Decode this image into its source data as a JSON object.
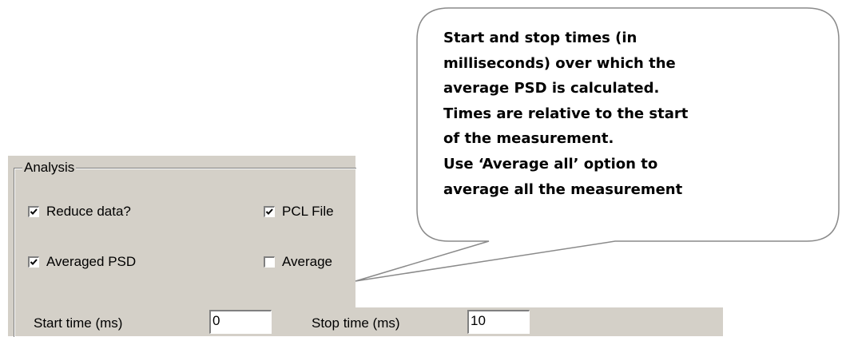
{
  "group": {
    "title": "Analysis",
    "checkboxes": [
      {
        "label": "Reduce data?",
        "checked": true
      },
      {
        "label": "PCL File",
        "checked": true
      },
      {
        "label": "Averaged PSD",
        "checked": true
      },
      {
        "label": "Average",
        "checked": false
      }
    ],
    "fields": [
      {
        "label": "Start time (ms)",
        "value": "0"
      },
      {
        "label": "Stop time (ms)",
        "value": "10"
      }
    ]
  },
  "callout": {
    "lines": [
      "Start and stop times (in",
      "milliseconds) over which the",
      "average PSD is calculated.",
      "Times are relative to the start",
      "of the measurement.",
      "Use ‘Average all’ option to",
      "average all the measurement"
    ]
  }
}
